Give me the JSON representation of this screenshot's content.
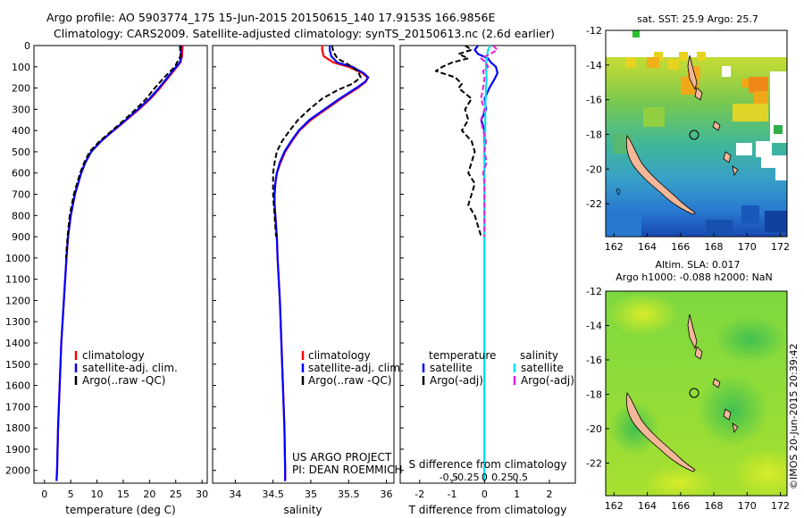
{
  "header": {
    "line1": "Argo profile: AO 5903774_175 15-Jun-2015 20150615_140 17.9153S 166.9856E",
    "line2": "Climatology: CARS2009. Satellite-adjusted climatology: synTS_20150613.nc (2.6d earlier)"
  },
  "colors": {
    "climatology": "#ff0000",
    "satellite": "#0000ff",
    "argo": "#000000",
    "satellite_salinity": "#00e5ee",
    "argo_salinity_adj": "#e020e0",
    "land": "#f4b899"
  },
  "depth_ticks": [
    "0",
    "100",
    "200",
    "300",
    "400",
    "500",
    "600",
    "700",
    "800",
    "900",
    "1000",
    "1100",
    "1200",
    "1300",
    "1400",
    "1500",
    "1600",
    "1700",
    "1800",
    "1900",
    "2000"
  ],
  "chart_data": [
    {
      "type": "line",
      "id": "temperature",
      "xlabel": "temperature (deg C)",
      "xlim": [
        -2,
        31
      ],
      "ylim": [
        2060,
        0
      ],
      "xticks": [
        "0",
        "5",
        "10",
        "15",
        "20",
        "25",
        "30"
      ],
      "xtick_values": [
        0,
        5,
        10,
        15,
        20,
        25,
        30
      ],
      "legend": [
        "climatology",
        "satellite-adj. clim.",
        "Argo(..raw -QC)"
      ],
      "series": [
        {
          "name": "climatology",
          "color": "red",
          "depth": [
            0,
            50,
            80,
            120,
            160,
            200,
            250,
            300,
            350,
            400,
            450,
            500,
            550,
            600,
            700,
            800,
            900,
            1000,
            1200,
            1400,
            1600,
            1800,
            2000,
            2050
          ],
          "values": [
            26.3,
            26.2,
            25.9,
            24.6,
            23.3,
            22.0,
            20.2,
            18.0,
            15.6,
            13.2,
            10.8,
            8.9,
            7.8,
            7.0,
            5.8,
            5.0,
            4.5,
            4.2,
            3.7,
            3.2,
            2.9,
            2.6,
            2.4,
            2.3
          ]
        },
        {
          "name": "satellite-adj. clim.",
          "color": "blue",
          "depth": [
            0,
            50,
            80,
            120,
            160,
            200,
            250,
            300,
            350,
            400,
            450,
            500,
            550,
            600,
            700,
            800,
            900,
            1000,
            1200,
            1400,
            1600,
            1800,
            2000,
            2050
          ],
          "values": [
            26.0,
            26.0,
            25.8,
            24.4,
            23.1,
            21.8,
            20.0,
            17.8,
            15.5,
            13.1,
            10.8,
            8.9,
            7.8,
            7.0,
            5.8,
            5.0,
            4.5,
            4.2,
            3.7,
            3.2,
            2.9,
            2.6,
            2.4,
            2.3
          ]
        },
        {
          "name": "Argo(..raw -QC)",
          "color": "black",
          "dashed": true,
          "depth": [
            0,
            50,
            100,
            150,
            200,
            250,
            300,
            350,
            400,
            450,
            500,
            550,
            600,
            700,
            800,
            900,
            1000
          ],
          "values": [
            25.8,
            25.9,
            24.8,
            22.8,
            21.0,
            19.4,
            17.4,
            15.2,
            12.9,
            10.5,
            8.6,
            7.6,
            6.8,
            5.6,
            4.8,
            4.4,
            4.1
          ]
        }
      ]
    },
    {
      "type": "line",
      "id": "salinity",
      "xlabel": "salinity",
      "xlim": [
        33.7,
        36.1
      ],
      "ylim": [
        2060,
        0
      ],
      "xticks": [
        "34",
        "34.5",
        "35",
        "35.5",
        "36"
      ],
      "xtick_values": [
        34,
        34.5,
        35,
        35.5,
        36
      ],
      "legend": [
        "climatology",
        "satellite-adj. clim.",
        "Argo(..raw -QC)"
      ],
      "annotation": [
        "US ARGO PROJECT",
        "PI: DEAN ROEMMICH"
      ],
      "series": [
        {
          "name": "climatology",
          "color": "red",
          "depth": [
            0,
            20,
            50,
            80,
            100,
            130,
            150,
            170,
            200,
            250,
            300,
            350,
            400,
            450,
            500,
            550,
            600,
            650,
            700,
            750,
            800,
            900,
            1000,
            1200,
            1400,
            1600,
            1800,
            2000,
            2050
          ],
          "values": [
            35.15,
            35.15,
            35.17,
            35.3,
            35.5,
            35.68,
            35.75,
            35.73,
            35.62,
            35.4,
            35.2,
            35.0,
            34.85,
            34.75,
            34.66,
            34.6,
            34.55,
            34.53,
            34.52,
            34.52,
            34.53,
            34.55,
            34.56,
            34.59,
            34.61,
            34.63,
            34.65,
            34.66,
            34.66
          ]
        },
        {
          "name": "satellite-adj. clim.",
          "color": "blue",
          "depth": [
            0,
            20,
            50,
            80,
            100,
            130,
            150,
            170,
            200,
            250,
            300,
            350,
            400,
            450,
            500,
            550,
            600,
            650,
            700,
            750,
            800,
            900,
            1000,
            1200,
            1400,
            1600,
            1800,
            2000,
            2050
          ],
          "values": [
            35.25,
            35.25,
            35.27,
            35.35,
            35.55,
            35.7,
            35.76,
            35.72,
            35.6,
            35.38,
            35.18,
            34.98,
            34.84,
            34.74,
            34.65,
            34.59,
            34.55,
            34.53,
            34.52,
            34.52,
            34.53,
            34.55,
            34.56,
            34.59,
            34.61,
            34.63,
            34.65,
            34.66,
            34.66
          ]
        },
        {
          "name": "Argo(..raw -QC)",
          "color": "black",
          "dashed": true,
          "depth": [
            0,
            30,
            60,
            90,
            120,
            150,
            180,
            210,
            250,
            300,
            350,
            400,
            450,
            500,
            550,
            600,
            650,
            700,
            750,
            800,
            850,
            900
          ],
          "values": [
            35.28,
            35.3,
            35.35,
            35.5,
            35.62,
            35.66,
            35.55,
            35.35,
            35.15,
            34.98,
            34.83,
            34.72,
            34.62,
            34.55,
            34.52,
            34.5,
            34.5,
            34.5,
            34.51,
            34.52,
            34.53,
            34.54
          ]
        }
      ]
    },
    {
      "type": "line",
      "id": "difference",
      "xlabel": "T difference from climatology",
      "xlabel_top": "S difference from climatology",
      "xlim": [
        -2.6,
        2.8
      ],
      "ylim": [
        2060,
        0
      ],
      "xticks": [
        "-2",
        "-1",
        "0",
        "1",
        "2"
      ],
      "xtick_values": [
        -2,
        -1,
        0,
        1,
        2
      ],
      "xticks_top": [
        "-0.5",
        "-0.25",
        "0",
        "0.25",
        "0.5"
      ],
      "xtick_top_values": [
        -0.5,
        -0.25,
        0,
        0.25,
        0.5
      ],
      "legend_headers": [
        "temperature",
        "salinity"
      ],
      "legend_temperature": [
        "satellite",
        "Argo(-adj)"
      ],
      "legend_salinity": [
        "satellite",
        "Argo(-adj)"
      ],
      "series": [
        {
          "name": "temperature satellite",
          "color": "blue",
          "depth": [
            0,
            20,
            40,
            60,
            80,
            100,
            130,
            160,
            200,
            250,
            300,
            350,
            400,
            500,
            600,
            700,
            800,
            1000,
            1500,
            2050
          ],
          "values": [
            -0.2,
            -0.3,
            -0.2,
            0.1,
            0.2,
            0.35,
            0.4,
            0.3,
            0.15,
            0.0,
            0.05,
            -0.1,
            0.0,
            0.0,
            0.0,
            0.0,
            0.0,
            0.0,
            0.0,
            0.0
          ]
        },
        {
          "name": "temperature Argo(-adj)",
          "color": "black",
          "dashed": true,
          "depth": [
            0,
            20,
            40,
            60,
            80,
            100,
            120,
            150,
            180,
            200,
            250,
            300,
            350,
            400,
            450,
            500,
            550,
            600,
            650,
            700,
            750,
            800,
            850,
            900
          ],
          "values": [
            -0.6,
            -0.4,
            -0.8,
            -0.5,
            -1.0,
            -1.3,
            -1.5,
            -0.9,
            -0.7,
            -0.8,
            -0.4,
            -0.6,
            -0.5,
            -0.7,
            -0.4,
            -0.3,
            -0.4,
            -0.5,
            -0.3,
            -0.4,
            -0.5,
            -0.3,
            -0.2,
            -0.1
          ]
        },
        {
          "name": "salinity satellite",
          "color": "cyan",
          "depth": [
            0,
            20,
            40,
            60,
            80,
            100,
            150,
            200,
            300,
            400,
            500,
            600,
            700,
            800,
            1000,
            1500,
            2050
          ],
          "values": [
            0.08,
            0.05,
            0.04,
            0.03,
            0.02,
            0.02,
            0.03,
            0.02,
            0.01,
            0.01,
            0.0,
            0.0,
            0.0,
            0.0,
            0.0,
            0.0,
            0.0
          ]
        },
        {
          "name": "salinity Argo(-adj)",
          "color": "magenta",
          "dashed": true,
          "depth": [
            0,
            20,
            40,
            60,
            80,
            100,
            120,
            150,
            200,
            250,
            300,
            350,
            400,
            450,
            500,
            550,
            600,
            650,
            700,
            750,
            800,
            850,
            900
          ],
          "values": [
            0.12,
            0.18,
            0.08,
            -0.05,
            0.02,
            0.05,
            -0.02,
            0.0,
            -0.02,
            -0.05,
            0.0,
            -0.05,
            -0.02,
            0.02,
            0.0,
            0.03,
            -0.02,
            0.0,
            0.0,
            0.0,
            0.0,
            0.0,
            0.0
          ]
        }
      ]
    }
  ],
  "maps": [
    {
      "title": "sat. SST: 25.9  Argo: 25.7",
      "xticks": [
        "162",
        "164",
        "166",
        "168",
        "170",
        "172"
      ],
      "yticks": [
        "-12",
        "-14",
        "-16",
        "-18",
        "-20",
        "-22"
      ]
    },
    {
      "title_line1": "Altim. SLA: 0.017",
      "title_line2": "Argo h1000: -0.088  h2000: NaN",
      "xticks": [
        "162",
        "164",
        "166",
        "168",
        "170",
        "172"
      ],
      "yticks": [
        "-12",
        "-14",
        "-16",
        "-18",
        "-20",
        "-22"
      ]
    }
  ],
  "footer_stamp": "©IMOS 20-Jun-2015 20:39:42"
}
